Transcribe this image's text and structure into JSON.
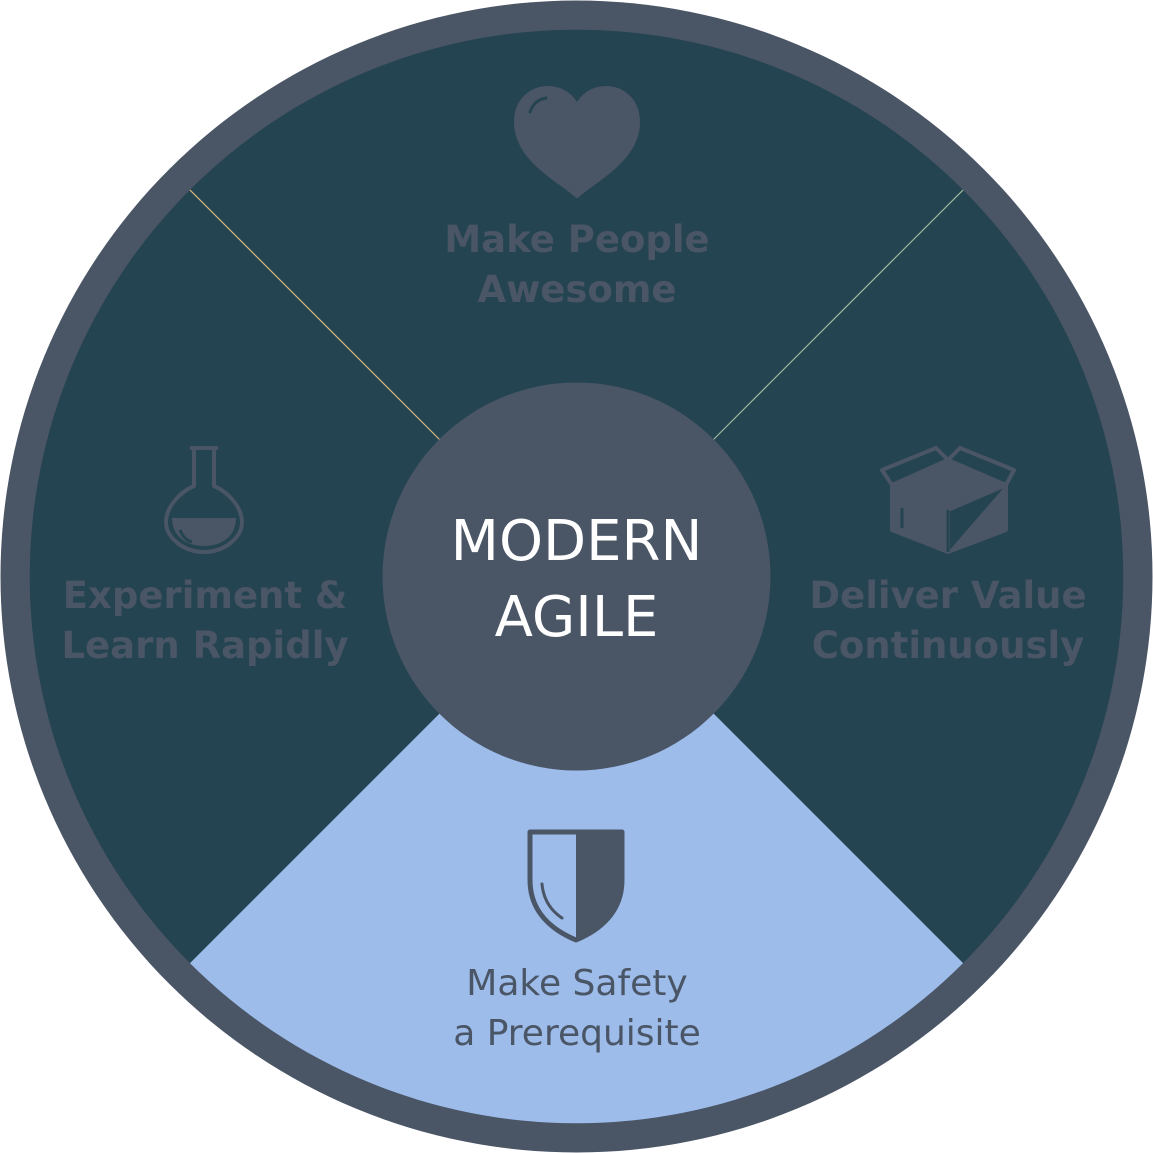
{
  "center": {
    "line1": "MODERN",
    "line2": "AGILE"
  },
  "segments": [
    {
      "id": "top",
      "line1": "Make People",
      "line2": "Awesome",
      "icon": "heart-icon"
    },
    {
      "id": "right",
      "line1": "Deliver Value",
      "line2": "Continuously",
      "icon": "box-icon"
    },
    {
      "id": "bottom",
      "line1": "Make Safety",
      "line2": "a Prerequisite",
      "icon": "shield-icon"
    },
    {
      "id": "left",
      "line1": "Experiment &",
      "line2": "Learn Rapidly",
      "icon": "flask-icon"
    }
  ],
  "colors": {
    "ring": "#4a5566",
    "segment_dark": "#254451",
    "segment_highlight": "#9dbcea",
    "hub": "#4a5566",
    "label_dark": "#4a5566",
    "label_highlight": "#4a5566",
    "hub_text": "#ffffff",
    "divider_left": "#d9b87a",
    "divider_right": "#9fb8a0"
  }
}
